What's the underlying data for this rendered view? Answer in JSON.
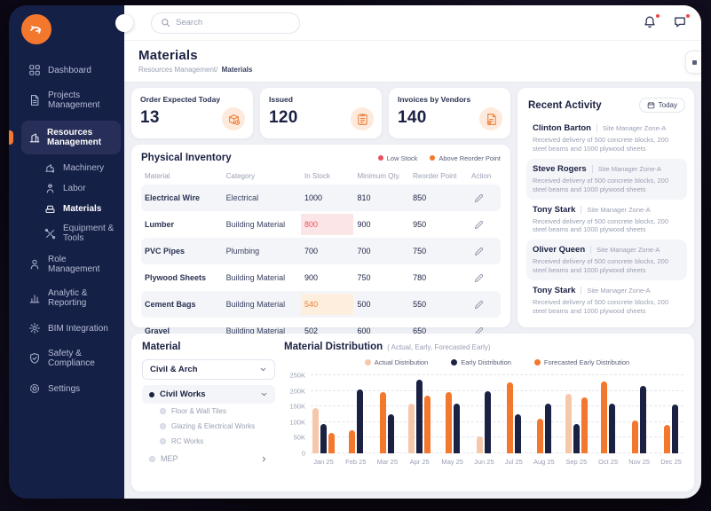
{
  "colors": {
    "accent": "#f4772e",
    "sidebar_bg": "#152047",
    "navy": "#1b2142",
    "low_stock": "#e8505b",
    "low_stock_bg": "#fce5e7",
    "above_reorder": "#ee7d2f",
    "above_reorder_bg": "#fdeedd",
    "series_actual": "#f6c8aa",
    "series_early": "#1b2142",
    "series_forecast": "#f4772e"
  },
  "topbar": {
    "search_placeholder": "Search",
    "icons": [
      "bell-icon",
      "chat-icon"
    ]
  },
  "sidebar": {
    "items": [
      {
        "label": "Dashboard",
        "icon": "dashboard-icon"
      },
      {
        "label": "Projects Management",
        "icon": "projects-icon"
      },
      {
        "label": "Resources Management",
        "icon": "resources-icon",
        "active": true,
        "children": [
          {
            "label": "Machinery",
            "icon": "machinery-icon"
          },
          {
            "label": "Labor",
            "icon": "labor-icon"
          },
          {
            "label": "Materials",
            "icon": "materials-icon",
            "active": true
          },
          {
            "label": "Equipment & Tools",
            "icon": "equipment-icon"
          }
        ]
      },
      {
        "label": "Role Management",
        "icon": "role-icon"
      },
      {
        "label": "Analytic & Reporting",
        "icon": "analytics-icon"
      },
      {
        "label": "BIM Integration",
        "icon": "bim-icon"
      },
      {
        "label": "Safety & Compliance",
        "icon": "safety-icon"
      },
      {
        "label": "Settings",
        "icon": "settings-icon"
      }
    ]
  },
  "header": {
    "title": "Materials",
    "breadcrumb_parent": "Resources Management/",
    "breadcrumb_current": "Materials"
  },
  "stats": [
    {
      "label": "Order Expected Today",
      "value": "13",
      "icon": "package-clock-icon"
    },
    {
      "label": "Issued",
      "value": "120",
      "icon": "issued-note-icon"
    },
    {
      "label": "Invoices by Vendors",
      "value": "140",
      "icon": "invoice-icon"
    }
  ],
  "inventory": {
    "title": "Physical Inventory",
    "legend": [
      {
        "label": "Low Stock",
        "color": "#e8505b"
      },
      {
        "label": "Above Reorder Point",
        "color": "#f4772e"
      }
    ],
    "columns": [
      "Material",
      "Category",
      "In Stock",
      "Minimum Qty.",
      "Reorder Point",
      "Action"
    ],
    "rows": [
      {
        "material": "Electrical Wire",
        "category": "Electrical",
        "in_stock": "1000",
        "min_qty": "810",
        "reorder": "850",
        "stock_state": "normal"
      },
      {
        "material": "Lumber",
        "category": "Building Material",
        "in_stock": "800",
        "min_qty": "900",
        "reorder": "950",
        "stock_state": "low"
      },
      {
        "material": "PVC Pipes",
        "category": "Plumbing",
        "in_stock": "700",
        "min_qty": "700",
        "reorder": "750",
        "stock_state": "normal"
      },
      {
        "material": "Plywood Sheets",
        "category": "Building Material",
        "in_stock": "900",
        "min_qty": "750",
        "reorder": "780",
        "stock_state": "normal"
      },
      {
        "material": "Cement Bags",
        "category": "Building Material",
        "in_stock": "540",
        "min_qty": "500",
        "reorder": "550",
        "stock_state": "above"
      },
      {
        "material": "Gravel",
        "category": "Building Material",
        "in_stock": "502",
        "min_qty": "600",
        "reorder": "650",
        "stock_state": "normal"
      }
    ]
  },
  "recent_activity": {
    "title": "Recent Activity",
    "filter_label": "Today",
    "items": [
      {
        "name": "Clinton Barton",
        "role": "Site Manager Zone-A",
        "description": "Received delivery of 500 concrete blocks, 200 steel beams and 1000 plywood sheets"
      },
      {
        "name": "Steve Rogers",
        "role": "Site Manager Zone-A",
        "description": "Received delivery of 500 concrete blocks, 200 steel beams and 1000 plywood sheets"
      },
      {
        "name": "Tony Stark",
        "role": "Site Manager Zone-A",
        "description": "Received delivery of 500 concrete blocks, 200 steel beams and 1000 plywood sheets"
      },
      {
        "name": "Oliver Queen",
        "role": "Site Manager Zone-A",
        "description": "Received delivery of 500 concrete blocks, 200 steel beams and 1000 plywood sheets"
      },
      {
        "name": "Tony Stark",
        "role": "Site Manager Zone-A",
        "description": "Received delivery of 500 concrete blocks, 200 steel beams and 1000 plywood sheets"
      }
    ]
  },
  "material_panel": {
    "title": "Material",
    "dropdown_value": "Civil & Arch",
    "tree_parent": "Civil Works",
    "tree_children": [
      "Floor & Wall Tiles",
      "Glazing & Electrical Works",
      "RC Works"
    ],
    "tree_collapsed": "MEP"
  },
  "chart_data": {
    "type": "bar",
    "title": "Material Distribution",
    "subtitle": "( Actual, Early, Forecasted Early)",
    "legend": [
      {
        "label": "Actual Distribution",
        "series": "actual",
        "color": "#f6c8aa"
      },
      {
        "label": "Early Distribution",
        "series": "early",
        "color": "#1b2142"
      },
      {
        "label": "Forecasted Early Distribution",
        "series": "forecast",
        "color": "#f4772e"
      }
    ],
    "ylim": [
      0,
      250000
    ],
    "yticks": [
      "250K",
      "200K",
      "150K",
      "100K",
      "50K",
      "0"
    ],
    "grid": true,
    "categories": [
      "Jan 25",
      "Feb 25",
      "Mar 25",
      "Apr 25",
      "May 25",
      "Jun 25",
      "Jul 25",
      "Aug 25",
      "Sep 25",
      "Oct 25",
      "Nov 25",
      "Dec 25"
    ],
    "months": [
      {
        "label": "Jan 25",
        "bars": [
          {
            "series": "actual",
            "value": 145000
          },
          {
            "series": "early",
            "value": 95000
          },
          {
            "series": "forecast",
            "value": 65000
          }
        ]
      },
      {
        "label": "Feb 25",
        "bars": [
          {
            "series": "forecast",
            "value": 75000
          },
          {
            "series": "early",
            "value": 205000
          }
        ]
      },
      {
        "label": "Mar 25",
        "bars": [
          {
            "series": "forecast",
            "value": 195000
          },
          {
            "series": "early",
            "value": 125000
          }
        ]
      },
      {
        "label": "Apr 25",
        "bars": [
          {
            "series": "actual",
            "value": 160000
          },
          {
            "series": "early",
            "value": 235000
          },
          {
            "series": "forecast",
            "value": 185000
          }
        ]
      },
      {
        "label": "May 25",
        "bars": [
          {
            "series": "forecast",
            "value": 197000
          },
          {
            "series": "early",
            "value": 158000
          }
        ]
      },
      {
        "label": "Jun 25",
        "bars": [
          {
            "series": "actual",
            "value": 53000
          },
          {
            "series": "early",
            "value": 198000
          }
        ]
      },
      {
        "label": "Jul 25",
        "bars": [
          {
            "series": "forecast",
            "value": 226000
          },
          {
            "series": "early",
            "value": 124000
          }
        ]
      },
      {
        "label": "Aug 25",
        "bars": [
          {
            "series": "forecast",
            "value": 112000
          },
          {
            "series": "early",
            "value": 160000
          }
        ]
      },
      {
        "label": "Sep 25",
        "bars": [
          {
            "series": "actual",
            "value": 190000
          },
          {
            "series": "early",
            "value": 95000
          },
          {
            "series": "forecast",
            "value": 180000
          }
        ]
      },
      {
        "label": "Oct 25",
        "bars": [
          {
            "series": "forecast",
            "value": 230000
          },
          {
            "series": "early",
            "value": 160000
          }
        ]
      },
      {
        "label": "Nov 25",
        "bars": [
          {
            "series": "forecast",
            "value": 105000
          },
          {
            "series": "early",
            "value": 215000
          }
        ]
      },
      {
        "label": "Dec 25",
        "bars": [
          {
            "series": "forecast",
            "value": 90000
          },
          {
            "series": "early",
            "value": 155000
          }
        ]
      }
    ]
  }
}
